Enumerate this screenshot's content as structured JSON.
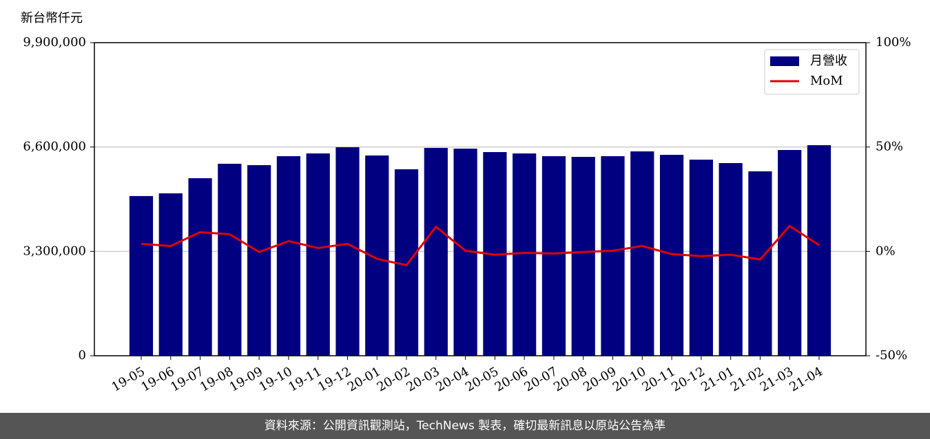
{
  "chart_data": {
    "type": "bar-line",
    "y_label": "新台幣仟元",
    "categories": [
      "19-05",
      "19-06",
      "19-07",
      "19-08",
      "19-09",
      "19-10",
      "19-11",
      "19-12",
      "20-01",
      "20-02",
      "20-03",
      "20-04",
      "20-05",
      "20-06",
      "20-07",
      "20-08",
      "20-09",
      "20-10",
      "20-11",
      "20-12",
      "21-01",
      "21-02",
      "21-03",
      "21-04"
    ],
    "series": [
      {
        "name": "月營收",
        "type": "bar",
        "axis": "y",
        "color": "#000080",
        "values": [
          5050000,
          5135000,
          5614000,
          6070000,
          6027000,
          6310000,
          6397000,
          6593000,
          6332000,
          5896000,
          6571000,
          6549000,
          6440000,
          6397000,
          6310000,
          6288000,
          6310000,
          6462000,
          6353000,
          6201000,
          6092000,
          5831000,
          6506000,
          6658000
        ]
      },
      {
        "name": "MoM",
        "type": "line",
        "axis": "y2",
        "color": "#e00000",
        "values": [
          3.6,
          2.6,
          9.2,
          8.2,
          -0.3,
          4.9,
          1.6,
          3.6,
          -3.6,
          -6.6,
          11.8,
          0.3,
          -1.6,
          -0.7,
          -1.0,
          -0.3,
          0.3,
          2.6,
          -1.3,
          -2.3,
          -1.6,
          -3.9,
          12.2,
          3.0
        ]
      }
    ],
    "ylim": [
      0,
      9900000
    ],
    "yticks": [
      0,
      {
        "value": 3300000,
        "label": "3,300,000"
      },
      {
        "value": 6600000,
        "label": "6,600,000"
      },
      {
        "value": 9900000,
        "label": "9,900,000"
      }
    ],
    "y2lim": [
      -50,
      100
    ],
    "y2ticks": [
      {
        "value": -50,
        "label": "-50%"
      },
      {
        "value": 0,
        "label": "0%"
      },
      {
        "value": 50,
        "label": "50%"
      },
      {
        "value": 100,
        "label": "100%"
      }
    ],
    "grid": true,
    "legend": "upper right"
  },
  "footer": {
    "text": "資料來源：公開資訊觀測站，TechNews 製表，確切最新訊息以原站公告為準"
  }
}
